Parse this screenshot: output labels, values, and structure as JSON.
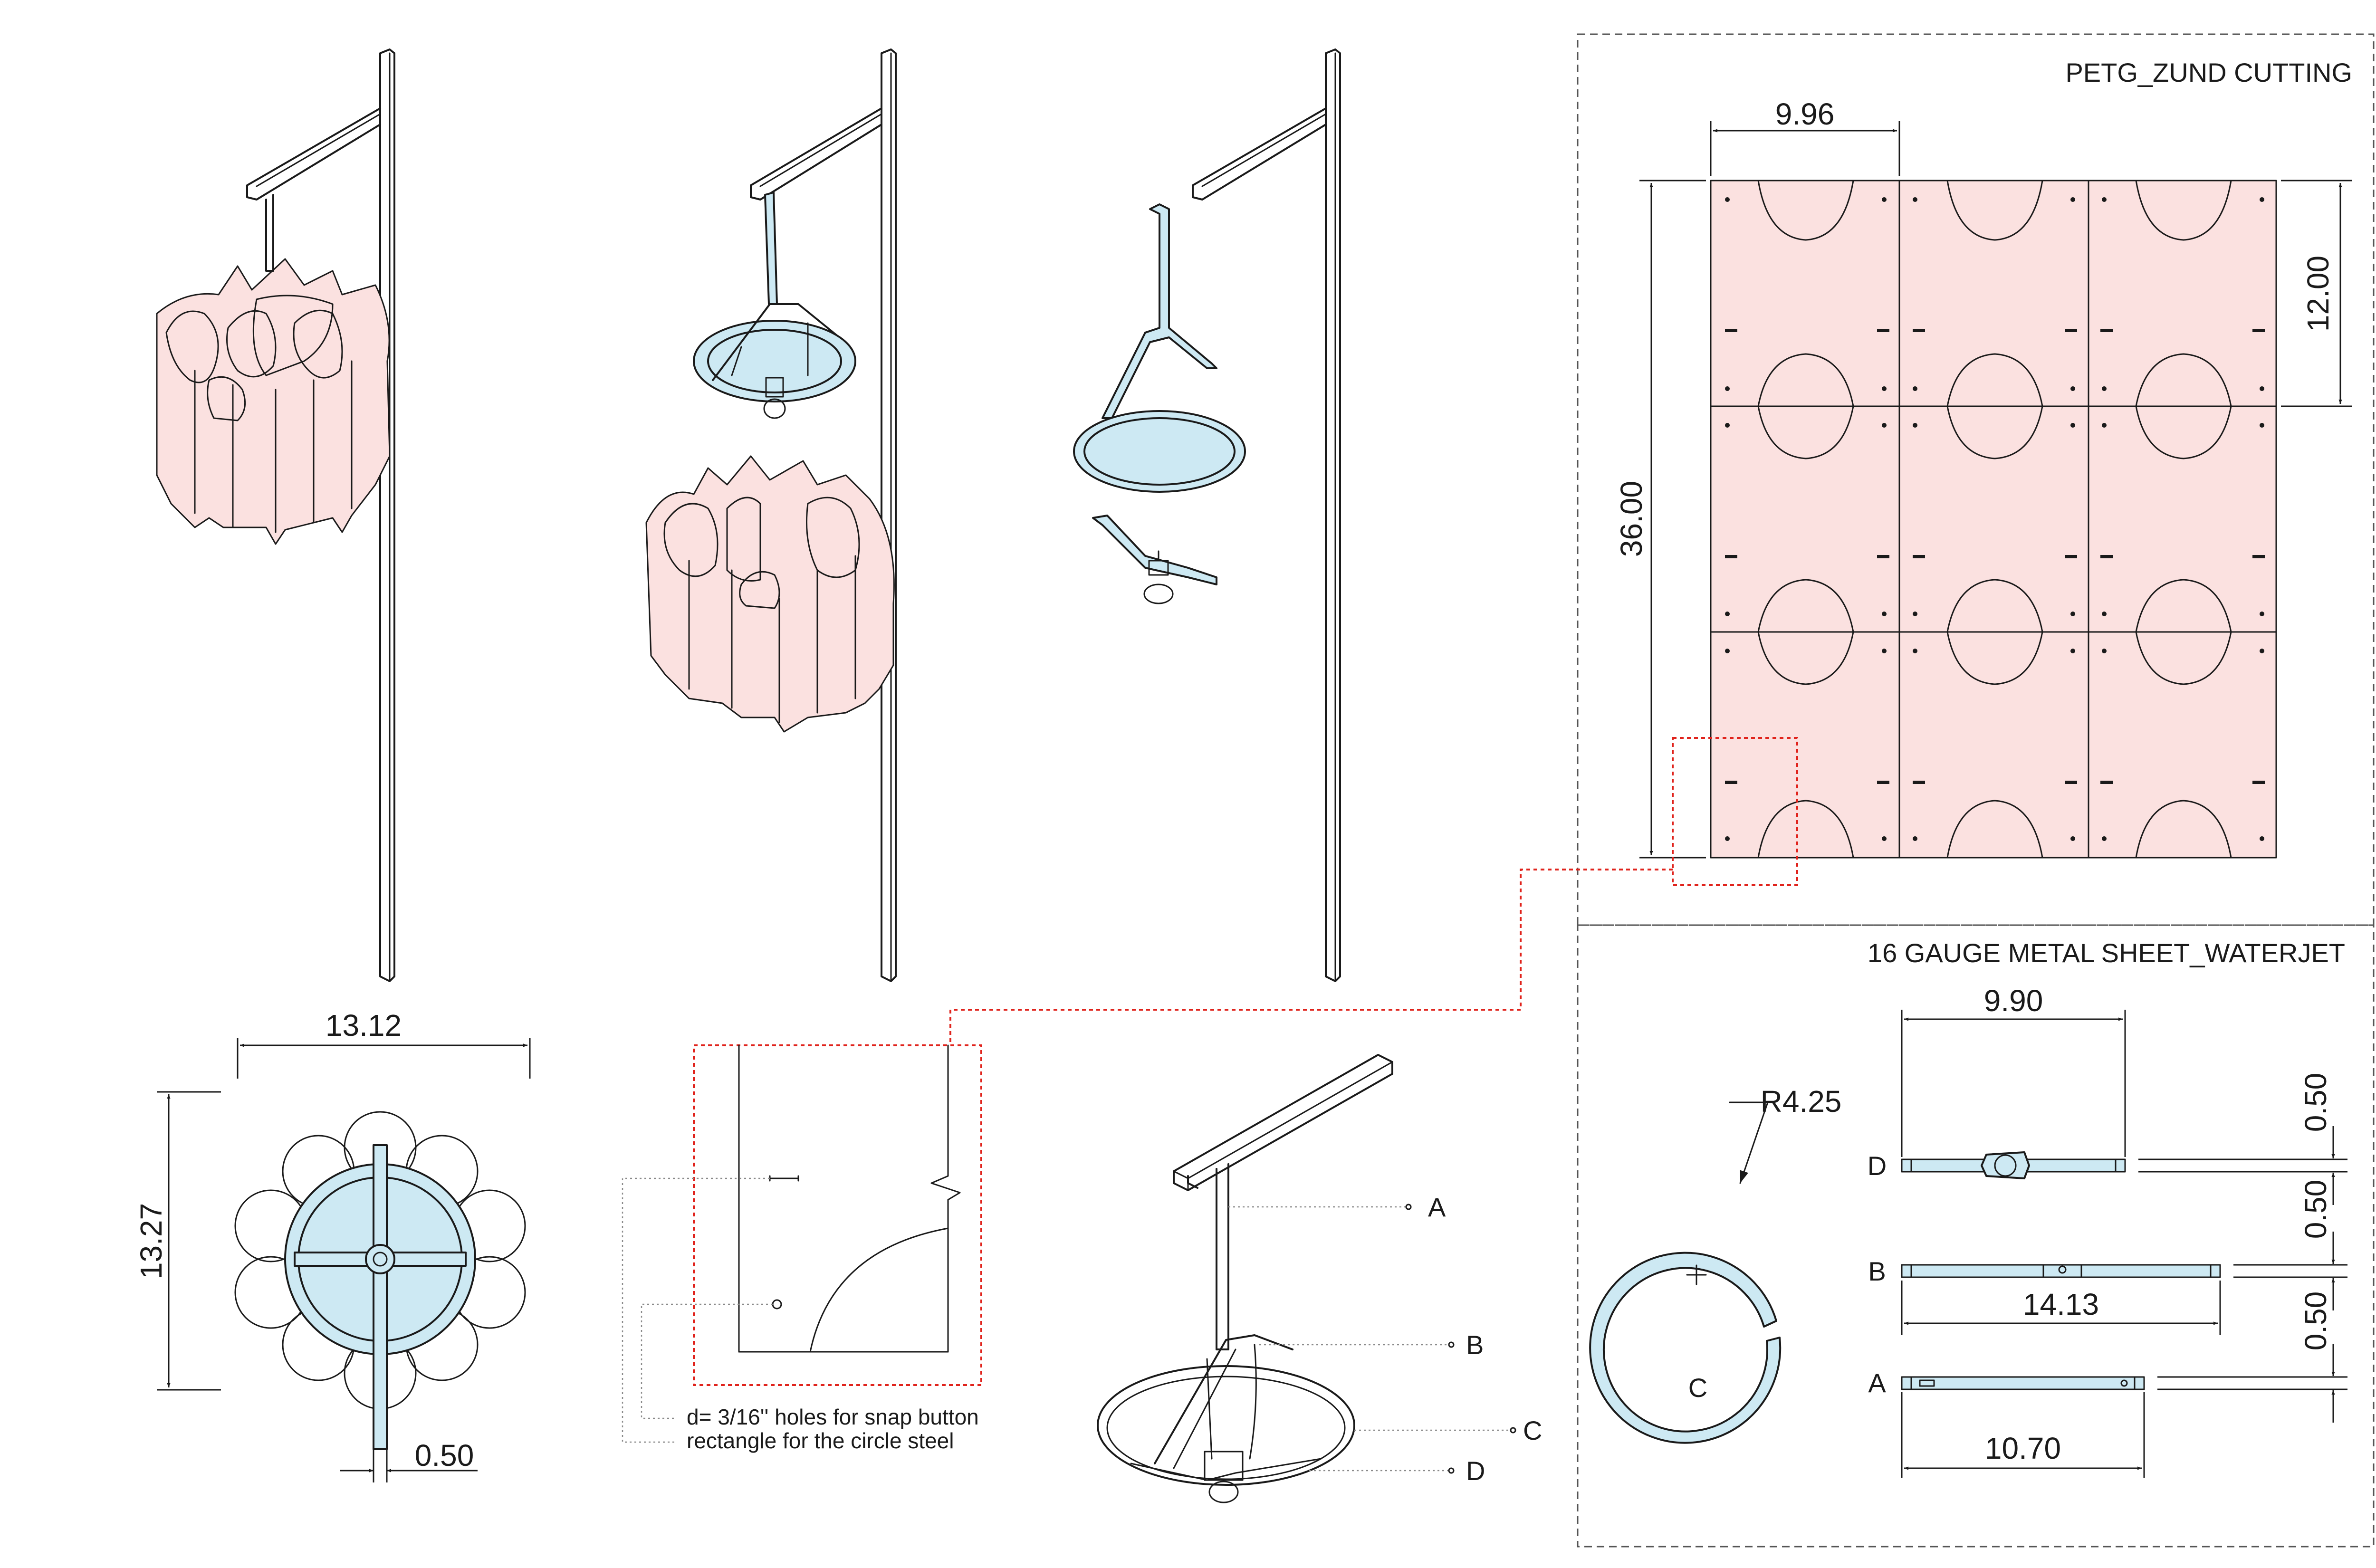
{
  "panels": {
    "petg_title": "PETG_ZUND CUTTING",
    "metal_title": "16 GAUGE METAL SHEET_WATERJET"
  },
  "petg_dims": {
    "width": "9.96",
    "row_height": "12.00",
    "total_height": "36.00"
  },
  "plan_dims": {
    "width": "13.12",
    "height": "13.27",
    "bar": "0.50"
  },
  "metal_dims": {
    "radius": "R4.25",
    "d_length": "9.90",
    "b_length": "14.13",
    "a_length": "10.70",
    "thickness_1": "0.50",
    "thickness_2": "0.50",
    "thickness_3": "0.50"
  },
  "part_labels": {
    "a": "A",
    "b": "B",
    "c": "C",
    "d": "D"
  },
  "notes": {
    "holes": "d= 3/16'' holes for snap button",
    "rectangle": "rectangle for the circle steel"
  },
  "colors": {
    "petg_fill": "#fbe1e0",
    "metal_fill": "#cde9f3",
    "callout_red": "#e0231c"
  }
}
